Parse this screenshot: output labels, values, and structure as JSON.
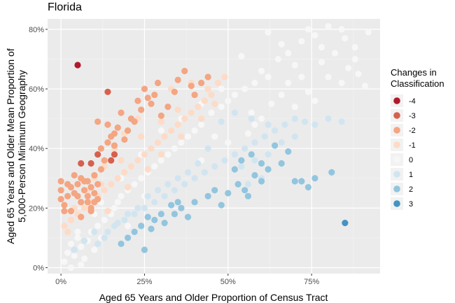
{
  "chart_data": {
    "type": "scatter",
    "title": "Florida",
    "xlabel": "Aged 65 Years and Older Proportion of Census Tract",
    "ylabel_lines": [
      "Aged 65 Years and Older Mean Proportion of",
      "5,000-Person Minimum Geography"
    ],
    "xlim": [
      -0.04,
      0.955
    ],
    "ylim": [
      -0.02,
      0.835
    ],
    "x_ticks": [
      {
        "value": 0,
        "label": "0%"
      },
      {
        "value": 0.25,
        "label": "25%"
      },
      {
        "value": 0.5,
        "label": "50%"
      },
      {
        "value": 0.75,
        "label": "75%"
      }
    ],
    "y_ticks": [
      {
        "value": 0,
        "label": "0%"
      },
      {
        "value": 0.2,
        "label": "20%"
      },
      {
        "value": 0.4,
        "label": "40%"
      },
      {
        "value": 0.6,
        "label": "60%"
      },
      {
        "value": 0.8,
        "label": "80%"
      }
    ],
    "grid": true,
    "legend": {
      "title_lines": [
        "Changes in",
        "Classification"
      ],
      "placement": "right",
      "entries": [
        {
          "label": "-4",
          "color": "#b2182b"
        },
        {
          "label": "-3",
          "color": "#d6604d"
        },
        {
          "label": "-2",
          "color": "#f4a582"
        },
        {
          "label": "-1",
          "color": "#fddbc7"
        },
        {
          "label": "0",
          "color": "#f7f7f7"
        },
        {
          "label": "1",
          "color": "#d1e5f0"
        },
        {
          "label": "2",
          "color": "#92c5de"
        },
        {
          "label": "3",
          "color": "#4393c3"
        }
      ]
    },
    "series": [
      {
        "class": "0",
        "points": [
          [
            0.01,
            0.02
          ],
          [
            0.02,
            0.05
          ],
          [
            0.03,
            0.08
          ],
          [
            0.04,
            0.04
          ],
          [
            0.05,
            0.1
          ],
          [
            0.06,
            0.07
          ],
          [
            0.07,
            0.03
          ],
          [
            0.08,
            0.09
          ],
          [
            0.09,
            0.12
          ],
          [
            0.1,
            0.06
          ],
          [
            0.11,
            0.14
          ],
          [
            0.12,
            0.1
          ],
          [
            0.13,
            0.16
          ],
          [
            0.14,
            0.12
          ],
          [
            0.15,
            0.18
          ],
          [
            0.16,
            0.2
          ],
          [
            0.17,
            0.22
          ],
          [
            0.18,
            0.24
          ],
          [
            0.2,
            0.26
          ],
          [
            0.22,
            0.28
          ],
          [
            0.24,
            0.3
          ],
          [
            0.25,
            0.24
          ],
          [
            0.26,
            0.32
          ],
          [
            0.28,
            0.34
          ],
          [
            0.3,
            0.36
          ],
          [
            0.32,
            0.38
          ],
          [
            0.34,
            0.4
          ],
          [
            0.36,
            0.42
          ],
          [
            0.38,
            0.44
          ],
          [
            0.4,
            0.46
          ],
          [
            0.42,
            0.48
          ],
          [
            0.45,
            0.52
          ],
          [
            0.48,
            0.54
          ],
          [
            0.5,
            0.56
          ],
          [
            0.52,
            0.58
          ],
          [
            0.55,
            0.6
          ],
          [
            0.58,
            0.62
          ],
          [
            0.6,
            0.66
          ],
          [
            0.62,
            0.64
          ],
          [
            0.65,
            0.7
          ],
          [
            0.68,
            0.72
          ],
          [
            0.7,
            0.68
          ],
          [
            0.72,
            0.76
          ],
          [
            0.74,
            0.8
          ],
          [
            0.76,
            0.78
          ],
          [
            0.78,
            0.74
          ],
          [
            0.8,
            0.81
          ],
          [
            0.82,
            0.72
          ],
          [
            0.84,
            0.8
          ],
          [
            0.85,
            0.77
          ],
          [
            0.86,
            0.67
          ],
          [
            0.88,
            0.7
          ],
          [
            0.89,
            0.65
          ],
          [
            0.92,
            0.79
          ],
          [
            0.91,
            0.61
          ],
          [
            0.8,
            0.64
          ],
          [
            0.74,
            0.59
          ],
          [
            0.68,
            0.62
          ],
          [
            0.63,
            0.55
          ],
          [
            0.57,
            0.52
          ],
          [
            0.62,
            0.79
          ],
          [
            0.66,
            0.75
          ],
          [
            0.54,
            0.71
          ],
          [
            0.48,
            0.6
          ],
          [
            0.42,
            0.55
          ],
          [
            0.36,
            0.5
          ],
          [
            0.3,
            0.46
          ],
          [
            0.24,
            0.38
          ],
          [
            0.18,
            0.3
          ],
          [
            0.12,
            0.22
          ],
          [
            0.05,
            0.12
          ],
          [
            0.03,
            0.0
          ],
          [
            0.06,
            0.01
          ],
          [
            0.1,
            0.18
          ],
          [
            0.2,
            0.14
          ],
          [
            0.28,
            0.22
          ],
          [
            0.35,
            0.3
          ],
          [
            0.42,
            0.36
          ],
          [
            0.5,
            0.42
          ],
          [
            0.58,
            0.48
          ],
          [
            0.7,
            0.54
          ],
          [
            0.76,
            0.56
          ],
          [
            0.84,
            0.62
          ],
          [
            0.88,
            0.74
          ],
          [
            0.78,
            0.69
          ],
          [
            0.72,
            0.64
          ],
          [
            0.66,
            0.58
          ],
          [
            0.6,
            0.5
          ],
          [
            0.56,
            0.45
          ],
          [
            0.46,
            0.44
          ]
        ]
      },
      {
        "class": "-1",
        "points": [
          [
            0.01,
            0.14
          ],
          [
            0.03,
            0.16
          ],
          [
            0.05,
            0.18
          ],
          [
            0.07,
            0.2
          ],
          [
            0.09,
            0.22
          ],
          [
            0.11,
            0.24
          ],
          [
            0.13,
            0.26
          ],
          [
            0.15,
            0.28
          ],
          [
            0.17,
            0.3
          ],
          [
            0.19,
            0.32
          ],
          [
            0.21,
            0.34
          ],
          [
            0.23,
            0.36
          ],
          [
            0.25,
            0.38
          ],
          [
            0.27,
            0.4
          ],
          [
            0.29,
            0.42
          ],
          [
            0.31,
            0.44
          ],
          [
            0.33,
            0.46
          ],
          [
            0.35,
            0.48
          ],
          [
            0.37,
            0.5
          ],
          [
            0.39,
            0.52
          ],
          [
            0.41,
            0.54
          ],
          [
            0.43,
            0.56
          ],
          [
            0.45,
            0.58
          ],
          [
            0.47,
            0.62
          ],
          [
            0.49,
            0.64
          ],
          [
            0.39,
            0.62
          ],
          [
            0.33,
            0.6
          ],
          [
            0.27,
            0.55
          ],
          [
            0.23,
            0.5
          ],
          [
            0.19,
            0.45
          ],
          [
            0.16,
            0.4
          ],
          [
            0.13,
            0.34
          ],
          [
            0.1,
            0.3
          ],
          [
            0.08,
            0.26
          ],
          [
            0.06,
            0.22
          ],
          [
            0.04,
            0.2
          ],
          [
            0.02,
            0.12
          ],
          [
            0.14,
            0.19
          ],
          [
            0.2,
            0.27
          ],
          [
            0.26,
            0.33
          ],
          [
            0.3,
            0.38
          ],
          [
            0.36,
            0.44
          ],
          [
            0.42,
            0.5
          ],
          [
            0.46,
            0.55
          ],
          [
            0.24,
            0.44
          ],
          [
            0.18,
            0.36
          ],
          [
            0.12,
            0.28
          ],
          [
            0.35,
            0.53
          ],
          [
            0.3,
            0.49
          ],
          [
            0.44,
            0.6
          ]
        ]
      },
      {
        "class": "-2",
        "points": [
          [
            0.0,
            0.29
          ],
          [
            0.0,
            0.26
          ],
          [
            0.0,
            0.23
          ],
          [
            0.01,
            0.21
          ],
          [
            0.02,
            0.24
          ],
          [
            0.03,
            0.27
          ],
          [
            0.04,
            0.25
          ],
          [
            0.05,
            0.28
          ],
          [
            0.06,
            0.22
          ],
          [
            0.07,
            0.26
          ],
          [
            0.08,
            0.24
          ],
          [
            0.09,
            0.27
          ],
          [
            0.1,
            0.25
          ],
          [
            0.1,
            0.22
          ],
          [
            0.11,
            0.28
          ],
          [
            0.04,
            0.31
          ],
          [
            0.06,
            0.3
          ],
          [
            0.08,
            0.29
          ],
          [
            0.1,
            0.31
          ],
          [
            0.12,
            0.4
          ],
          [
            0.13,
            0.36
          ],
          [
            0.14,
            0.42
          ],
          [
            0.15,
            0.44
          ],
          [
            0.16,
            0.41
          ],
          [
            0.17,
            0.47
          ],
          [
            0.18,
            0.52
          ],
          [
            0.19,
            0.43
          ],
          [
            0.2,
            0.46
          ],
          [
            0.22,
            0.49
          ],
          [
            0.24,
            0.53
          ],
          [
            0.26,
            0.57
          ],
          [
            0.27,
            0.55
          ],
          [
            0.28,
            0.58
          ],
          [
            0.3,
            0.51
          ],
          [
            0.32,
            0.54
          ],
          [
            0.35,
            0.63
          ],
          [
            0.37,
            0.66
          ],
          [
            0.39,
            0.61
          ],
          [
            0.44,
            0.64
          ],
          [
            0.11,
            0.49
          ],
          [
            0.14,
            0.48
          ],
          [
            0.16,
            0.45
          ],
          [
            0.21,
            0.5
          ],
          [
            0.23,
            0.56
          ],
          [
            0.03,
            0.19
          ],
          [
            0.06,
            0.17
          ],
          [
            0.09,
            0.2
          ],
          [
            0.25,
            0.6
          ],
          [
            0.29,
            0.62
          ],
          [
            0.34,
            0.59
          ],
          [
            0.4,
            0.58
          ],
          [
            0.42,
            0.62
          ],
          [
            0.12,
            0.33
          ],
          [
            0.05,
            0.24
          ],
          [
            0.08,
            0.22
          ],
          [
            0.02,
            0.28
          ],
          [
            0.11,
            0.23
          ],
          [
            0.09,
            0.19
          ],
          [
            0.07,
            0.29
          ],
          [
            0.01,
            0.19
          ]
        ]
      },
      {
        "class": "-3",
        "points": [
          [
            0.06,
            0.35
          ],
          [
            0.09,
            0.35
          ],
          [
            0.11,
            0.38
          ],
          [
            0.15,
            0.36
          ],
          [
            0.14,
            0.59
          ],
          [
            0.16,
            0.38
          ]
        ]
      },
      {
        "class": "-4",
        "points": [
          [
            0.05,
            0.68
          ]
        ]
      },
      {
        "class": "1",
        "points": [
          [
            0.04,
            0.06
          ],
          [
            0.07,
            0.09
          ],
          [
            0.1,
            0.12
          ],
          [
            0.13,
            0.1
          ],
          [
            0.16,
            0.14
          ],
          [
            0.19,
            0.16
          ],
          [
            0.22,
            0.18
          ],
          [
            0.25,
            0.2
          ],
          [
            0.28,
            0.22
          ],
          [
            0.31,
            0.24
          ],
          [
            0.34,
            0.26
          ],
          [
            0.37,
            0.28
          ],
          [
            0.4,
            0.3
          ],
          [
            0.43,
            0.32
          ],
          [
            0.46,
            0.34
          ],
          [
            0.49,
            0.36
          ],
          [
            0.52,
            0.38
          ],
          [
            0.55,
            0.4
          ],
          [
            0.58,
            0.42
          ],
          [
            0.61,
            0.44
          ],
          [
            0.64,
            0.46
          ],
          [
            0.67,
            0.48
          ],
          [
            0.7,
            0.5
          ],
          [
            0.73,
            0.49
          ],
          [
            0.76,
            0.48
          ],
          [
            0.8,
            0.5
          ],
          [
            0.84,
            0.49
          ],
          [
            0.62,
            0.48
          ],
          [
            0.57,
            0.5
          ],
          [
            0.52,
            0.52
          ],
          [
            0.48,
            0.49
          ],
          [
            0.44,
            0.4
          ],
          [
            0.41,
            0.35
          ],
          [
            0.38,
            0.32
          ],
          [
            0.35,
            0.3
          ],
          [
            0.32,
            0.28
          ],
          [
            0.29,
            0.26
          ],
          [
            0.26,
            0.24
          ],
          [
            0.23,
            0.2
          ],
          [
            0.2,
            0.18
          ],
          [
            0.17,
            0.15
          ],
          [
            0.14,
            0.12
          ],
          [
            0.11,
            0.08
          ],
          [
            0.54,
            0.34
          ],
          [
            0.58,
            0.36
          ],
          [
            0.62,
            0.38
          ],
          [
            0.66,
            0.42
          ],
          [
            0.7,
            0.44
          ],
          [
            0.6,
            0.3
          ],
          [
            0.56,
            0.28
          ]
        ]
      },
      {
        "class": "2",
        "points": [
          [
            0.2,
            0.1
          ],
          [
            0.22,
            0.12
          ],
          [
            0.24,
            0.14
          ],
          [
            0.26,
            0.17
          ],
          [
            0.28,
            0.16
          ],
          [
            0.3,
            0.18
          ],
          [
            0.33,
            0.21
          ],
          [
            0.36,
            0.2
          ],
          [
            0.4,
            0.22
          ],
          [
            0.44,
            0.24
          ],
          [
            0.48,
            0.21
          ],
          [
            0.5,
            0.25
          ],
          [
            0.53,
            0.28
          ],
          [
            0.55,
            0.26
          ],
          [
            0.58,
            0.31
          ],
          [
            0.6,
            0.29
          ],
          [
            0.62,
            0.33
          ],
          [
            0.66,
            0.35
          ],
          [
            0.7,
            0.29
          ],
          [
            0.72,
            0.29
          ],
          [
            0.74,
            0.27
          ],
          [
            0.76,
            0.3
          ],
          [
            0.81,
            0.32
          ],
          [
            0.56,
            0.24
          ],
          [
            0.52,
            0.33
          ],
          [
            0.54,
            0.36
          ],
          [
            0.57,
            0.38
          ],
          [
            0.64,
            0.41
          ],
          [
            0.68,
            0.39
          ],
          [
            0.35,
            0.22
          ],
          [
            0.25,
            0.06
          ],
          [
            0.18,
            0.08
          ],
          [
            0.27,
            0.13
          ],
          [
            0.31,
            0.15
          ],
          [
            0.34,
            0.18
          ],
          [
            0.38,
            0.17
          ],
          [
            0.46,
            0.26
          ],
          [
            0.6,
            0.35
          ]
        ]
      },
      {
        "class": "3",
        "points": [
          [
            0.85,
            0.15
          ]
        ]
      }
    ]
  }
}
